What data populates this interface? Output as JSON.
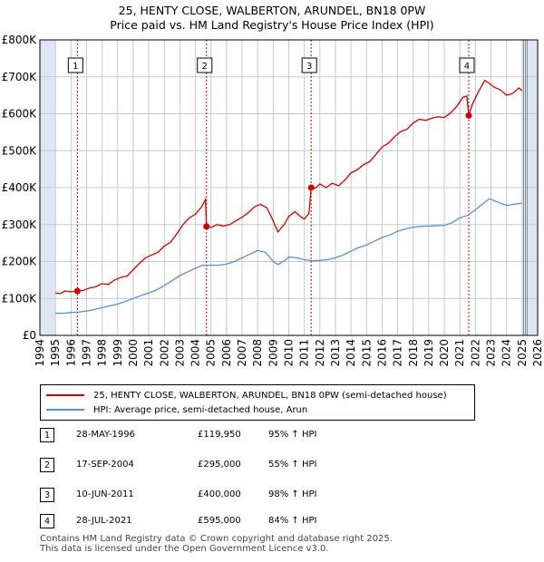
{
  "colors": {
    "property": "#cc0000",
    "hpi": "#5b8fc9",
    "band": "#dde6f3",
    "grid": "#c8c8c8",
    "vline": "#cc0000"
  },
  "header": {
    "title": "25, HENTY CLOSE, WALBERTON, ARUNDEL, BN18 0PW",
    "subtitle": "Price paid vs. HM Land Registry's House Price Index (HPI)"
  },
  "chart_data": {
    "type": "line",
    "title": "25, HENTY CLOSE, WALBERTON, ARUNDEL, BN18 0PW",
    "subtitle": "Price paid vs. HM Land Registry's House Price Index (HPI)",
    "xlim": [
      1994,
      2026
    ],
    "ylim": [
      0,
      800000
    ],
    "x_ticks": [
      1994,
      1995,
      1996,
      1997,
      1998,
      1999,
      2000,
      2001,
      2002,
      2003,
      2004,
      2005,
      2006,
      2007,
      2008,
      2009,
      2010,
      2011,
      2012,
      2013,
      2014,
      2015,
      2016,
      2017,
      2018,
      2019,
      2020,
      2021,
      2022,
      2023,
      2024,
      2025,
      2026
    ],
    "y_ticks": [
      0,
      100000,
      200000,
      300000,
      400000,
      500000,
      600000,
      700000,
      800000
    ],
    "y_tick_labels": [
      "£0",
      "£100K",
      "£200K",
      "£300K",
      "£400K",
      "£500K",
      "£600K",
      "£700K",
      "£800K"
    ],
    "shaded_regions": [
      [
        1994,
        1995
      ],
      [
        2025,
        2026
      ]
    ],
    "grid": true,
    "series": [
      {
        "name": "25, HENTY CLOSE, WALBERTON, ARUNDEL, BN18 0PW (semi-detached house)",
        "color": "#cc0000",
        "points": [
          [
            1995.0,
            115000
          ],
          [
            1995.3,
            113000
          ],
          [
            1995.6,
            120000
          ],
          [
            1996.0,
            118000
          ],
          [
            1996.41,
            119950
          ],
          [
            1996.8,
            122000
          ],
          [
            1997.2,
            128000
          ],
          [
            1997.6,
            132000
          ],
          [
            1998.0,
            140000
          ],
          [
            1998.4,
            138000
          ],
          [
            1998.8,
            150000
          ],
          [
            1999.2,
            157000
          ],
          [
            1999.6,
            160000
          ],
          [
            2000.0,
            178000
          ],
          [
            2000.4,
            195000
          ],
          [
            2000.8,
            210000
          ],
          [
            2001.2,
            218000
          ],
          [
            2001.6,
            225000
          ],
          [
            2002.0,
            242000
          ],
          [
            2002.4,
            252000
          ],
          [
            2002.8,
            275000
          ],
          [
            2003.2,
            300000
          ],
          [
            2003.6,
            318000
          ],
          [
            2004.0,
            328000
          ],
          [
            2004.4,
            348000
          ],
          [
            2004.65,
            368000
          ],
          [
            2004.71,
            295000
          ],
          [
            2005.0,
            292000
          ],
          [
            2005.4,
            300000
          ],
          [
            2005.8,
            296000
          ],
          [
            2006.2,
            300000
          ],
          [
            2006.6,
            310000
          ],
          [
            2007.0,
            320000
          ],
          [
            2007.4,
            332000
          ],
          [
            2007.8,
            348000
          ],
          [
            2008.2,
            355000
          ],
          [
            2008.6,
            345000
          ],
          [
            2009.0,
            310000
          ],
          [
            2009.3,
            280000
          ],
          [
            2009.7,
            300000
          ],
          [
            2010.0,
            322000
          ],
          [
            2010.4,
            335000
          ],
          [
            2010.8,
            320000
          ],
          [
            2011.0,
            315000
          ],
          [
            2011.3,
            330000
          ],
          [
            2011.44,
            400000
          ],
          [
            2011.7,
            398000
          ],
          [
            2012.0,
            410000
          ],
          [
            2012.4,
            400000
          ],
          [
            2012.8,
            412000
          ],
          [
            2013.2,
            405000
          ],
          [
            2013.6,
            420000
          ],
          [
            2014.0,
            440000
          ],
          [
            2014.4,
            448000
          ],
          [
            2014.8,
            462000
          ],
          [
            2015.2,
            470000
          ],
          [
            2015.6,
            490000
          ],
          [
            2016.0,
            510000
          ],
          [
            2016.4,
            520000
          ],
          [
            2016.8,
            538000
          ],
          [
            2017.2,
            552000
          ],
          [
            2017.6,
            558000
          ],
          [
            2018.0,
            575000
          ],
          [
            2018.4,
            585000
          ],
          [
            2018.8,
            582000
          ],
          [
            2019.2,
            588000
          ],
          [
            2019.6,
            592000
          ],
          [
            2020.0,
            590000
          ],
          [
            2020.4,
            602000
          ],
          [
            2020.8,
            620000
          ],
          [
            2021.2,
            645000
          ],
          [
            2021.45,
            648000
          ],
          [
            2021.57,
            595000
          ],
          [
            2021.8,
            625000
          ],
          [
            2022.2,
            660000
          ],
          [
            2022.6,
            690000
          ],
          [
            2022.9,
            682000
          ],
          [
            2023.2,
            672000
          ],
          [
            2023.6,
            665000
          ],
          [
            2024.0,
            650000
          ],
          [
            2024.4,
            655000
          ],
          [
            2024.8,
            670000
          ],
          [
            2025.0,
            662000
          ]
        ]
      },
      {
        "name": "HPI: Average price, semi-detached house, Arun",
        "color": "#5b8fc9",
        "points": [
          [
            1995.0,
            60000
          ],
          [
            1995.5,
            60000
          ],
          [
            1996.0,
            62000
          ],
          [
            1996.5,
            63000
          ],
          [
            1997.0,
            66000
          ],
          [
            1997.5,
            70000
          ],
          [
            1998.0,
            75000
          ],
          [
            1998.5,
            80000
          ],
          [
            1999.0,
            85000
          ],
          [
            1999.5,
            92000
          ],
          [
            2000.0,
            100000
          ],
          [
            2000.5,
            108000
          ],
          [
            2001.0,
            115000
          ],
          [
            2001.5,
            123000
          ],
          [
            2002.0,
            135000
          ],
          [
            2002.5,
            148000
          ],
          [
            2003.0,
            162000
          ],
          [
            2003.5,
            172000
          ],
          [
            2004.0,
            182000
          ],
          [
            2004.5,
            190000
          ],
          [
            2005.0,
            190000
          ],
          [
            2005.5,
            190000
          ],
          [
            2006.0,
            193000
          ],
          [
            2006.5,
            200000
          ],
          [
            2007.0,
            210000
          ],
          [
            2007.5,
            220000
          ],
          [
            2008.0,
            230000
          ],
          [
            2008.5,
            225000
          ],
          [
            2009.0,
            200000
          ],
          [
            2009.3,
            192000
          ],
          [
            2009.7,
            202000
          ],
          [
            2010.0,
            212000
          ],
          [
            2010.5,
            210000
          ],
          [
            2011.0,
            205000
          ],
          [
            2011.5,
            202000
          ],
          [
            2012.0,
            203000
          ],
          [
            2012.5,
            205000
          ],
          [
            2013.0,
            210000
          ],
          [
            2013.5,
            218000
          ],
          [
            2014.0,
            228000
          ],
          [
            2014.5,
            238000
          ],
          [
            2015.0,
            245000
          ],
          [
            2015.5,
            255000
          ],
          [
            2016.0,
            265000
          ],
          [
            2016.5,
            272000
          ],
          [
            2017.0,
            282000
          ],
          [
            2017.5,
            288000
          ],
          [
            2018.0,
            293000
          ],
          [
            2018.5,
            295000
          ],
          [
            2019.0,
            296000
          ],
          [
            2019.5,
            297000
          ],
          [
            2020.0,
            298000
          ],
          [
            2020.5,
            305000
          ],
          [
            2021.0,
            318000
          ],
          [
            2021.5,
            325000
          ],
          [
            2022.0,
            340000
          ],
          [
            2022.5,
            357000
          ],
          [
            2022.9,
            370000
          ],
          [
            2023.2,
            365000
          ],
          [
            2023.6,
            358000
          ],
          [
            2024.0,
            352000
          ],
          [
            2024.5,
            355000
          ],
          [
            2025.0,
            358000
          ]
        ]
      }
    ],
    "sales": [
      {
        "id": "1",
        "date": "28-MAY-1996",
        "price": "£119,950",
        "hpi": "95% ↑ HPI",
        "x": 1996.41,
        "value": 119950
      },
      {
        "id": "2",
        "date": "17-SEP-2004",
        "price": "£295,000",
        "hpi": "55% ↑ HPI",
        "x": 2004.71,
        "value": 295000
      },
      {
        "id": "3",
        "date": "10-JUN-2011",
        "price": "£400,000",
        "hpi": "98% ↑ HPI",
        "x": 2011.44,
        "value": 400000
      },
      {
        "id": "4",
        "date": "28-JUL-2021",
        "price": "£595,000",
        "hpi": "84% ↑ HPI",
        "x": 2021.57,
        "value": 595000
      }
    ]
  },
  "legend": {
    "property_label": "25, HENTY CLOSE, WALBERTON, ARUNDEL, BN18 0PW (semi-detached house)",
    "hpi_label": "HPI: Average price, semi-detached house, Arun"
  },
  "footer": {
    "line1": "Contains HM Land Registry data © Crown copyright and database right 2025.",
    "line2": "This data is licensed under the Open Government Licence v3.0."
  }
}
